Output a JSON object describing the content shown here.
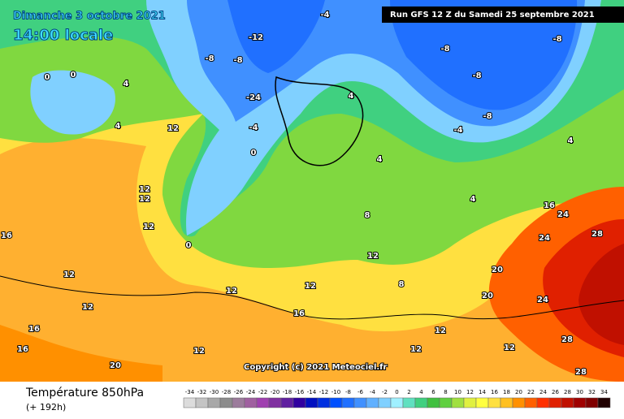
{
  "header": {
    "date": "Dimanche 3 octobre 2021",
    "time": "14:00 locale",
    "run": "Run GFS 12 Z du Samedi 25 septembre 2021"
  },
  "copyright": "Copyright (c) 2021 Meteociel.fr",
  "footer": {
    "title": "Température 850hPa",
    "lead": "(+ 192h)"
  },
  "map_labels": [
    0,
    0,
    4,
    4,
    12,
    12,
    12,
    12,
    16,
    12,
    12,
    16,
    16,
    20,
    12,
    12,
    12,
    16,
    12,
    12,
    12,
    20,
    20,
    24,
    28,
    24,
    28,
    28,
    0,
    0,
    -4,
    -8,
    -12,
    -24,
    -8,
    -8,
    -8,
    -4,
    -8,
    4,
    4,
    8,
    12,
    8,
    4,
    16,
    24,
    -4,
    -8,
    4
  ],
  "legend": {
    "labels": [
      -34,
      -32,
      -30,
      -28,
      -26,
      -24,
      -22,
      -20,
      -18,
      -16,
      -14,
      -12,
      -10,
      -8,
      -6,
      -4,
      -2,
      0,
      2,
      4,
      6,
      8,
      10,
      12,
      14,
      16,
      18,
      20,
      22,
      24,
      26,
      28,
      30,
      32,
      34
    ],
    "colors": [
      "#dcdcdc",
      "#c4c4c4",
      "#a8a8a8",
      "#8c8c8c",
      "#9c7c9c",
      "#a060a0",
      "#a040b0",
      "#8030a0",
      "#6020a0",
      "#3000a0",
      "#0010c0",
      "#0030e0",
      "#0050ff",
      "#2070ff",
      "#4090ff",
      "#60b0ff",
      "#80d0ff",
      "#a0f0ff",
      "#60e0c0",
      "#40d080",
      "#40c040",
      "#60d040",
      "#a0e040",
      "#e0f040",
      "#ffff40",
      "#ffe040",
      "#ffc020",
      "#ff9000",
      "#ff6000",
      "#ff3000",
      "#e02000",
      "#c01000",
      "#a00000",
      "#800000",
      "#200000"
    ]
  }
}
